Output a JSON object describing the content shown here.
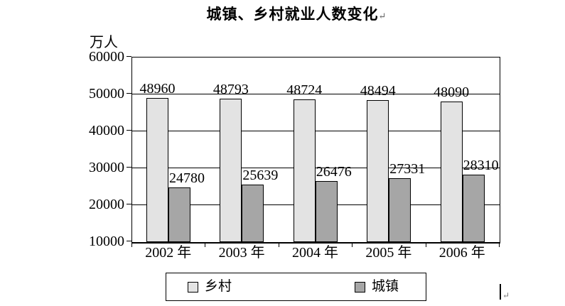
{
  "document": {
    "paragraph_mark": "↵"
  },
  "chart_data": {
    "type": "bar",
    "title": "城镇、乡村就业人数变化",
    "categories": [
      "2002 年",
      "2003 年",
      "2004 年",
      "2005 年",
      "2006 年"
    ],
    "series": [
      {
        "name": "乡村",
        "values": [
          48960,
          48793,
          48724,
          48494,
          48090
        ],
        "color": "#e3e3e3"
      },
      {
        "name": "城镇",
        "values": [
          24780,
          25639,
          26476,
          27331,
          28310
        ],
        "color": "#a6a6a6"
      }
    ],
    "ylabel": "万人",
    "ylim": [
      10000,
      60000
    ],
    "y_ticks": [
      10000,
      20000,
      30000,
      40000,
      50000,
      60000
    ],
    "grid": true,
    "data_labels": true,
    "legend_position": "bottom",
    "bar_border_color": "#000000",
    "axis_color": "#000000"
  }
}
